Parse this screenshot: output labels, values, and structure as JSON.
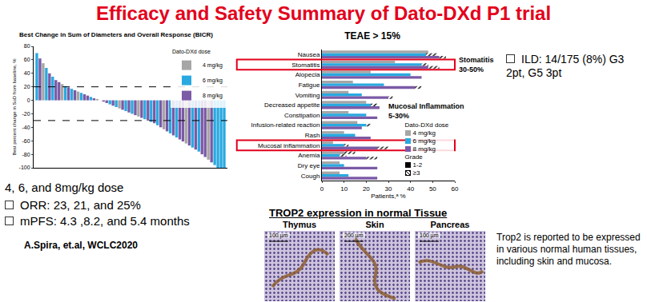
{
  "title": "Efficacy and Safety Summary of Dato-DXd P1 trial",
  "chart_data": [
    {
      "type": "bar",
      "title": "Best Change in Sum of Diameters and Overall Response (BICR)",
      "ylabel": "Best percent change in SoD from baseline, %",
      "xlim": [
        0,
        61
      ],
      "ylim": [
        -100,
        80
      ],
      "yticks": [
        -100,
        -80,
        -60,
        -40,
        -20,
        0,
        20,
        40,
        60,
        80
      ],
      "tick_labels": "y",
      "grid": false,
      "legend": "top right",
      "legend_title": "Dato-DXd dose",
      "reference_lines": [
        20,
        -30
      ],
      "series": [
        {
          "name": "4 mg/kg",
          "color": "#a6a6a6",
          "x": [
            3,
            9,
            14,
            20,
            27,
            33,
            41,
            48,
            55
          ],
          "values": [
            55,
            24,
            13,
            2,
            -12,
            -24,
            -43,
            -64,
            -88
          ]
        },
        {
          "name": "6 mg/kg",
          "color": "#29a9e0",
          "x": [
            1,
            4,
            6,
            10,
            12,
            15,
            18,
            21,
            24,
            26,
            29,
            31,
            35,
            37,
            39,
            43,
            45,
            50,
            52,
            57,
            58,
            59,
            60
          ],
          "values": [
            70,
            48,
            35,
            21,
            17,
            11,
            5,
            0,
            -6,
            -10,
            -16,
            -20,
            -28,
            -32,
            -37,
            -49,
            -55,
            -70,
            -76,
            -96,
            -100,
            -100,
            -100
          ]
        },
        {
          "name": "8 mg/kg",
          "color": "#7b5aa6",
          "x": [
            2,
            5,
            7,
            8,
            11,
            13,
            16,
            17,
            19,
            22,
            23,
            25,
            28,
            30,
            32,
            34,
            36,
            38,
            40,
            42,
            44,
            46,
            47,
            49,
            51,
            53,
            54,
            56
          ],
          "values": [
            62,
            40,
            30,
            27,
            19,
            15,
            9,
            7,
            3,
            -2,
            -4,
            -8,
            -14,
            -18,
            -22,
            -26,
            -30,
            -34,
            -40,
            -46,
            -52,
            -58,
            -61,
            -67,
            -73,
            -80,
            -84,
            -92
          ]
        }
      ]
    },
    {
      "type": "bar",
      "title": "TEAE > 15%",
      "orientation": "horizontal",
      "xlabel": "Patients,ᵃ %",
      "xlim": [
        0,
        60
      ],
      "xticks": [
        0,
        10,
        20,
        30,
        40,
        50,
        60
      ],
      "grid": false,
      "legend": "bottom right",
      "legend_title": "Dato-DXd dose",
      "categories": [
        "Nausea",
        "Stomatitis",
        "Alopecia",
        "Fatigue",
        "Vomiting",
        "Decreased appetite",
        "Constipation",
        "Infusion-related reaction",
        "Rash",
        "Mucosal inflammation",
        "Anemia",
        "Dry eye",
        "Cough"
      ],
      "series": [
        {
          "name": "4 mg/kg",
          "color": "#a6a6a6",
          "values": [
            48,
            33,
            22,
            14,
            12,
            20,
            12,
            16,
            10,
            5,
            10,
            8,
            8
          ],
          "grade_3_plus": [
            0,
            0,
            0,
            0,
            0,
            0,
            0,
            0,
            0,
            0,
            5,
            0,
            0
          ]
        },
        {
          "name": "6 mg/kg",
          "color": "#29a9e0",
          "values": [
            47,
            45,
            40,
            28,
            18,
            22,
            20,
            20,
            15,
            10,
            8,
            10,
            12
          ],
          "grade_3_plus": [
            5,
            3,
            0,
            0,
            0,
            3,
            0,
            2,
            0,
            2,
            3,
            0,
            0
          ]
        },
        {
          "name": "8 mg/kg",
          "color": "#7b5aa6",
          "values": [
            53,
            48,
            45,
            42,
            30,
            26,
            25,
            18,
            22,
            25,
            20,
            25,
            25
          ],
          "grade_3_plus": [
            3,
            5,
            0,
            3,
            2,
            0,
            0,
            0,
            0,
            5,
            5,
            0,
            0
          ]
        }
      ],
      "grade_legend": {
        "title": "Grade",
        "labels": [
          "1-2",
          "≥3"
        ]
      },
      "annotations": [
        {
          "text": [
            "Stomatitis",
            "30-50%"
          ],
          "category": "Stomatitis"
        },
        {
          "text": [
            "Mucosal Inflammation",
            "5-30%"
          ],
          "category": "Mucosal inflammation"
        }
      ]
    }
  ],
  "efficacy": {
    "dose": "4, 6, and 8mg/kg dose",
    "bullets": [
      "ORR: 23, 21, and 25%",
      "mPFS: 4.3 ,8.2, and 5.4 months"
    ],
    "citation": "A.Spira, et.al, WCLC2020"
  },
  "ild": "ILD: 14/175 (8%) G3 2pt, G5 3pt",
  "tissue": {
    "title": "TROP2 expression in normal Tissue",
    "panels": [
      {
        "label": "Thymus",
        "scale_bar": "100 µm"
      },
      {
        "label": "Skin",
        "scale_bar": "200 µm"
      },
      {
        "label": "Pancreas",
        "scale_bar": "100 µm"
      }
    ],
    "note": "Trop2 is reported to be expressed in various normal human tissues, including skin and mucosa."
  }
}
